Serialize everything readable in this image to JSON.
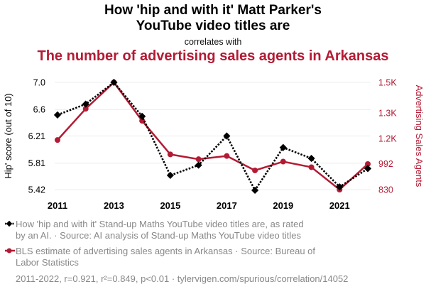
{
  "header": {
    "title_line1": "How 'hip and with it' Matt Parker's",
    "title_line2": "YouTube video titles are",
    "correlates": "correlates with",
    "title_line3": "The number of advertising sales agents in Arkansas"
  },
  "colors": {
    "series1": "#000000",
    "series2": "#b31b34",
    "grid": "#ececec",
    "muted": "#888888"
  },
  "chart_data": {
    "type": "line",
    "x": [
      2011,
      2012,
      2013,
      2014,
      2015,
      2016,
      2017,
      2018,
      2019,
      2020,
      2021,
      2022
    ],
    "xticks": [
      "2011",
      "2013",
      "2015",
      "2017",
      "2019",
      "2021"
    ],
    "xlim": [
      2010.9,
      2022.1
    ],
    "ylabel_left": "Hip' score (out of 10)",
    "ylabel_right": "Advertising Sales Agents",
    "yticks_left": [
      "7.0",
      "6.6",
      "6.21",
      "5.81",
      "5.42"
    ],
    "ylim_left": [
      5.42,
      7.0
    ],
    "yticks_right": [
      "1.5K",
      "1.3K",
      "1.2K",
      "992",
      "830"
    ],
    "ylim_right": [
      830,
      1500
    ],
    "series": [
      {
        "name": "How 'hip and with it' Stand-up Maths YouTube video titles are, as rated by an AI.",
        "axis": "left",
        "marker": "diamond",
        "style": "dotted",
        "values": [
          6.52,
          6.68,
          7.0,
          6.5,
          5.63,
          5.78,
          6.21,
          5.41,
          6.04,
          5.88,
          5.46,
          5.73
        ]
      },
      {
        "name": "BLS estimate of advertising sales agents in Arkansas",
        "axis": "right",
        "marker": "circle",
        "style": "solid",
        "values": [
          1140,
          1335,
          1500,
          1260,
          1050,
          1020,
          1040,
          950,
          1005,
          970,
          830,
          990
        ]
      }
    ]
  },
  "legend": {
    "line1": "How 'hip and with it' Stand-up Maths YouTube video titles are, as rated",
    "line1b": "by an AI. · Source: AI analysis of Stand-up Maths YouTube video titles",
    "line2": "BLS estimate of advertising sales agents in Arkansas · Source: Bureau of",
    "line2b": "Labor Statistics"
  },
  "footer": "2011-2022, r=0.921, r²=0.849, p<0.01 · tylervigen.com/spurious/correlation/14052"
}
